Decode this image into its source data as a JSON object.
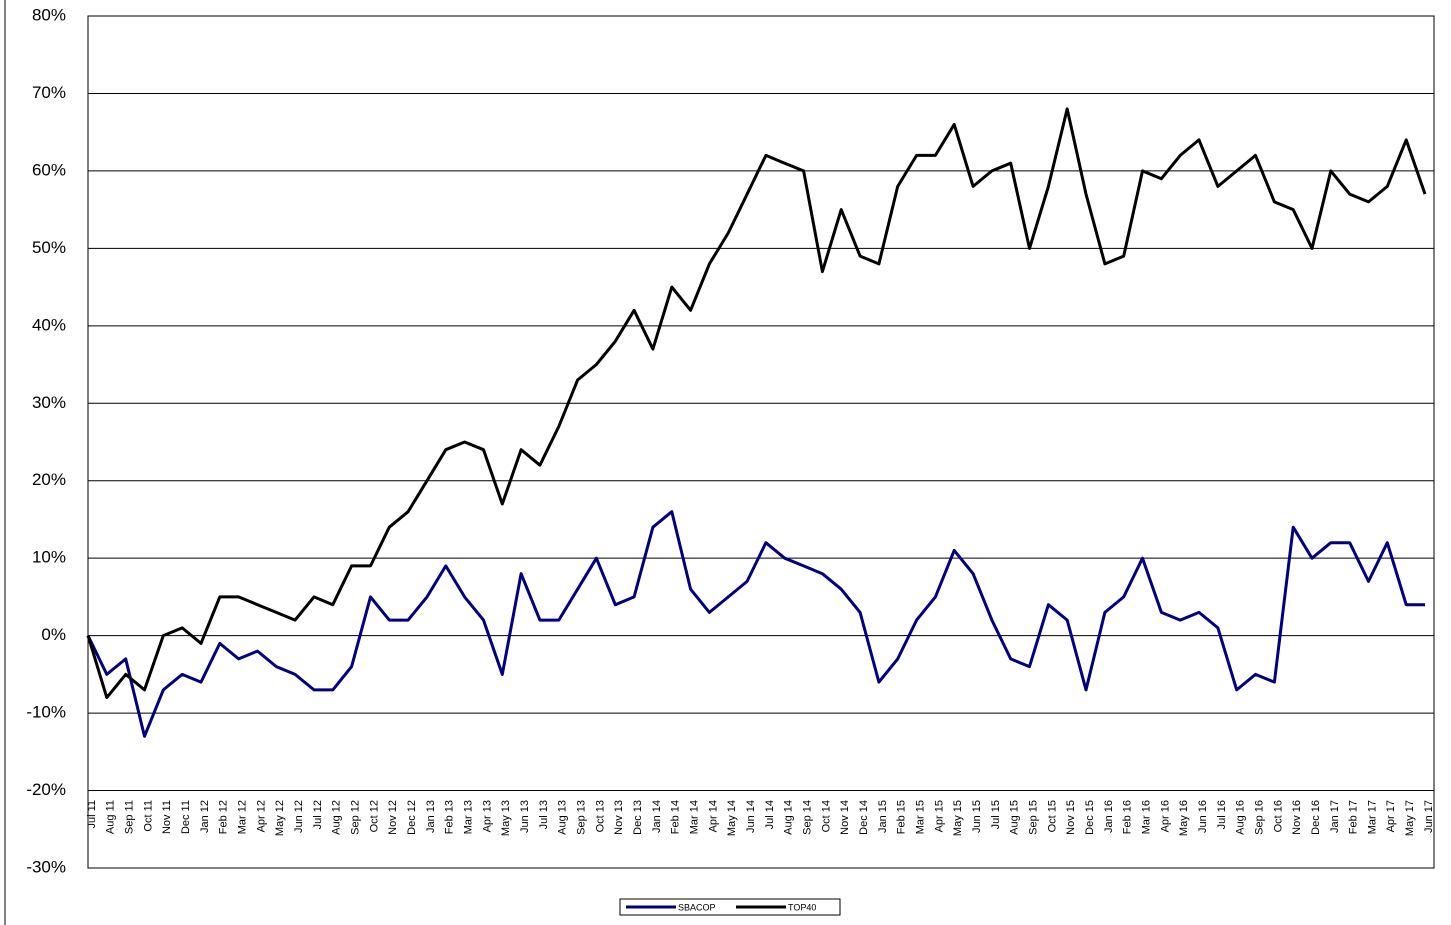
{
  "chart_data": {
    "type": "line",
    "categories": [
      "Jul 11",
      "Aug 11",
      "Sep 11",
      "Oct 11",
      "Nov 11",
      "Dec 11",
      "Jan 12",
      "Feb 12",
      "Mar 12",
      "Apr 12",
      "May 12",
      "Jun 12",
      "Jul 12",
      "Aug 12",
      "Sep 12",
      "Oct 12",
      "Nov 12",
      "Dec 12",
      "Jan 13",
      "Feb 13",
      "Mar 13",
      "Apr 13",
      "May 13",
      "Jun 13",
      "Jul 13",
      "Aug 13",
      "Sep 13",
      "Oct 13",
      "Nov 13",
      "Dec 13",
      "Jan 14",
      "Feb 14",
      "Mar 14",
      "Apr 14",
      "May 14",
      "Jun 14",
      "Jul 14",
      "Aug 14",
      "Sep 14",
      "Oct 14",
      "Nov 14",
      "Dec 14",
      "Jan 15",
      "Feb 15",
      "Mar 15",
      "Apr 15",
      "May 15",
      "Jun 15",
      "Jul 15",
      "Aug 15",
      "Sep 15",
      "Oct 15",
      "Nov 15",
      "Dec 15",
      "Jan 16",
      "Feb 16",
      "Mar 16",
      "Apr 16",
      "May 16",
      "Jun 16",
      "Jul 16",
      "Aug 16",
      "Sep 16",
      "Oct 16",
      "Nov 16",
      "Dec 16",
      "Jan 17",
      "Feb 17",
      "Mar 17",
      "Apr 17",
      "May 17",
      "Jun 17"
    ],
    "series": [
      {
        "name": "SBACOP",
        "color": "#000080",
        "values": [
          0,
          -5,
          -3,
          -13,
          -7,
          -5,
          -6,
          -1,
          -3,
          -2,
          -4,
          -5,
          -7,
          -7,
          -4,
          5,
          2,
          2,
          5,
          9,
          5,
          2,
          -5,
          8,
          2,
          2,
          6,
          10,
          4,
          5,
          14,
          16,
          6,
          3,
          5,
          7,
          12,
          10,
          9,
          8,
          6,
          3,
          -6,
          -3,
          2,
          5,
          11,
          8,
          2,
          -3,
          -4,
          4,
          2,
          -7,
          3,
          5,
          10,
          3,
          2,
          3,
          1,
          -7,
          -5,
          -6,
          14,
          10,
          12,
          12,
          7,
          12,
          4,
          4
        ]
      },
      {
        "name": "TOP40",
        "color": "#000000",
        "values": [
          0,
          -8,
          -5,
          -7,
          0,
          1,
          -1,
          5,
          5,
          4,
          3,
          2,
          5,
          4,
          9,
          9,
          14,
          16,
          20,
          24,
          25,
          24,
          17,
          24,
          22,
          27,
          33,
          35,
          38,
          42,
          37,
          45,
          42,
          48,
          52,
          57,
          62,
          61,
          60,
          47,
          55,
          49,
          48,
          58,
          62,
          62,
          66,
          58,
          60,
          61,
          50,
          58,
          68,
          57,
          48,
          49,
          60,
          59,
          62,
          64,
          58,
          60,
          62,
          56,
          55,
          50,
          60,
          57,
          56,
          58,
          64,
          57
        ]
      }
    ],
    "ylim": [
      -30,
      80
    ],
    "yticks": [
      {
        "value": -30,
        "label": "-30%"
      },
      {
        "value": -20,
        "label": "-20%"
      },
      {
        "value": -10,
        "label": "-10%"
      },
      {
        "value": 0,
        "label": "0%"
      },
      {
        "value": 10,
        "label": "10%"
      },
      {
        "value": 20,
        "label": "20%"
      },
      {
        "value": 30,
        "label": "30%"
      },
      {
        "value": 40,
        "label": "40%"
      },
      {
        "value": 50,
        "label": "50%"
      },
      {
        "value": 60,
        "label": "60%"
      },
      {
        "value": 70,
        "label": "70%"
      },
      {
        "value": 80,
        "label": "80%"
      }
    ],
    "grid": true,
    "legend": "bottom"
  }
}
